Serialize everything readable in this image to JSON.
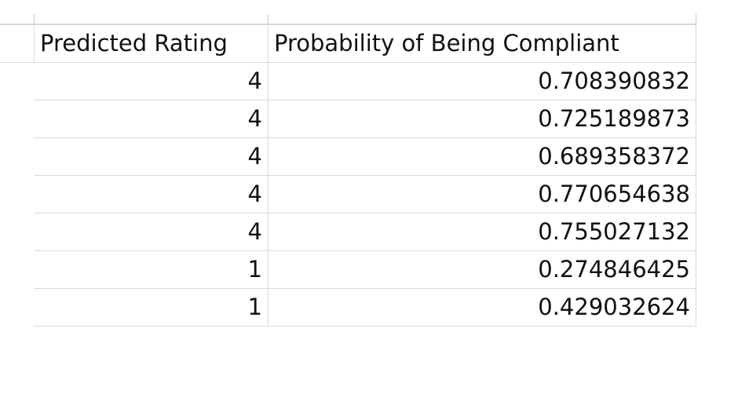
{
  "table": {
    "headers": [
      "Predicted Rating",
      "Probability of Being Compliant"
    ],
    "rows": [
      [
        "4",
        "0.708390832"
      ],
      [
        "4",
        "0.725189873"
      ],
      [
        "4",
        "0.689358372"
      ],
      [
        "4",
        "0.770654638"
      ],
      [
        "4",
        "0.755027132"
      ],
      [
        "1",
        "0.274846425"
      ],
      [
        "1",
        "0.429032624"
      ]
    ]
  }
}
